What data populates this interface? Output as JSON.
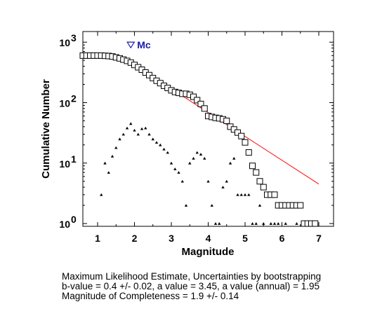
{
  "chart_data": {
    "type": "scatter",
    "xlabel": "Magnitude",
    "ylabel": "Cumulative Number",
    "xlim": [
      0.6,
      7.4
    ],
    "ylim": [
      0.9,
      1500
    ],
    "y_scale": "log",
    "x_ticks": [
      1,
      2,
      3,
      4,
      5,
      6,
      7
    ],
    "x_tick_labels": [
      "1",
      "2",
      "3",
      "4",
      "5",
      "6",
      "7"
    ],
    "y_ticks": [
      1,
      10,
      100,
      1000
    ],
    "y_tick_labels": [
      {
        "base": "10",
        "exp": "0"
      },
      {
        "base": "10",
        "exp": "1"
      },
      {
        "base": "10",
        "exp": "2"
      },
      {
        "base": "10",
        "exp": "3"
      }
    ],
    "grid": false,
    "cumulative": {
      "x": [
        0.6,
        0.7,
        0.8,
        0.9,
        1.0,
        1.1,
        1.2,
        1.3,
        1.4,
        1.5,
        1.6,
        1.7,
        1.8,
        1.9,
        2.0,
        2.1,
        2.2,
        2.3,
        2.4,
        2.5,
        2.6,
        2.7,
        2.8,
        2.9,
        3.0,
        3.1,
        3.2,
        3.3,
        3.4,
        3.5,
        3.6,
        3.7,
        3.8,
        3.9,
        4.0,
        4.1,
        4.2,
        4.3,
        4.4,
        4.5,
        4.6,
        4.7,
        4.8,
        4.9,
        5.0,
        5.1,
        5.2,
        5.3,
        5.4,
        5.5,
        5.6,
        5.7,
        5.8,
        5.9,
        6.0,
        6.1,
        6.2,
        6.3,
        6.4,
        6.5,
        6.6,
        6.7,
        6.8,
        6.9
      ],
      "y": [
        600,
        600,
        600,
        600,
        600,
        600,
        595,
        590,
        580,
        560,
        540,
        515,
        490,
        460,
        420,
        385,
        350,
        315,
        285,
        255,
        230,
        210,
        190,
        175,
        160,
        150,
        145,
        140,
        140,
        135,
        125,
        110,
        95,
        80,
        60,
        58,
        56,
        55,
        53,
        50,
        40,
        36,
        32,
        28,
        22,
        15,
        9,
        7,
        5,
        4,
        3,
        3,
        3,
        2,
        2,
        2,
        2,
        2,
        2,
        2,
        1,
        1,
        1,
        1
      ]
    },
    "non_cumulative": {
      "x": [
        1.1,
        1.2,
        1.3,
        1.4,
        1.5,
        1.6,
        1.7,
        1.8,
        1.9,
        2.0,
        2.1,
        2.2,
        2.3,
        2.4,
        2.5,
        2.6,
        2.7,
        2.8,
        2.9,
        3.0,
        3.1,
        3.2,
        3.3,
        3.4,
        3.5,
        3.6,
        3.7,
        3.8,
        3.9,
        4.0,
        4.1,
        4.2,
        4.3,
        4.4,
        4.5,
        4.6,
        4.7,
        4.8,
        4.9,
        5.0,
        5.1,
        5.2,
        5.3,
        5.4,
        5.5,
        5.7,
        5.8,
        5.9,
        6.1,
        6.4,
        6.6,
        6.7,
        6.8
      ],
      "y": [
        3,
        10,
        7,
        13,
        18,
        25,
        30,
        38,
        45,
        35,
        30,
        37,
        38,
        30,
        25,
        22,
        20,
        17,
        15,
        10,
        8,
        7,
        5,
        2,
        10,
        12,
        15,
        14,
        12,
        5,
        2,
        1,
        1,
        4,
        5,
        10,
        12,
        3,
        3,
        3,
        3,
        1,
        1,
        2,
        1,
        1,
        1,
        1,
        1,
        1,
        1,
        1,
        1
      ]
    },
    "fit_line": {
      "x": [
        2.0,
        7.0
      ],
      "y": [
        420,
        4.5
      ],
      "color": "#ff0000"
    },
    "mc_marker": {
      "x": 1.9,
      "y": 900,
      "label": "Mc",
      "color": "#1a1aa6"
    },
    "caption": [
      "Maximum Likelihood Estimate, Uncertainties by bootstrapping",
      "b-value = 0.4 +/- 0.02,  a value = 3.45,  a value (annual) = 1.95",
      "Magnitude of Completeness = 1.9 +/- 0.14"
    ]
  }
}
